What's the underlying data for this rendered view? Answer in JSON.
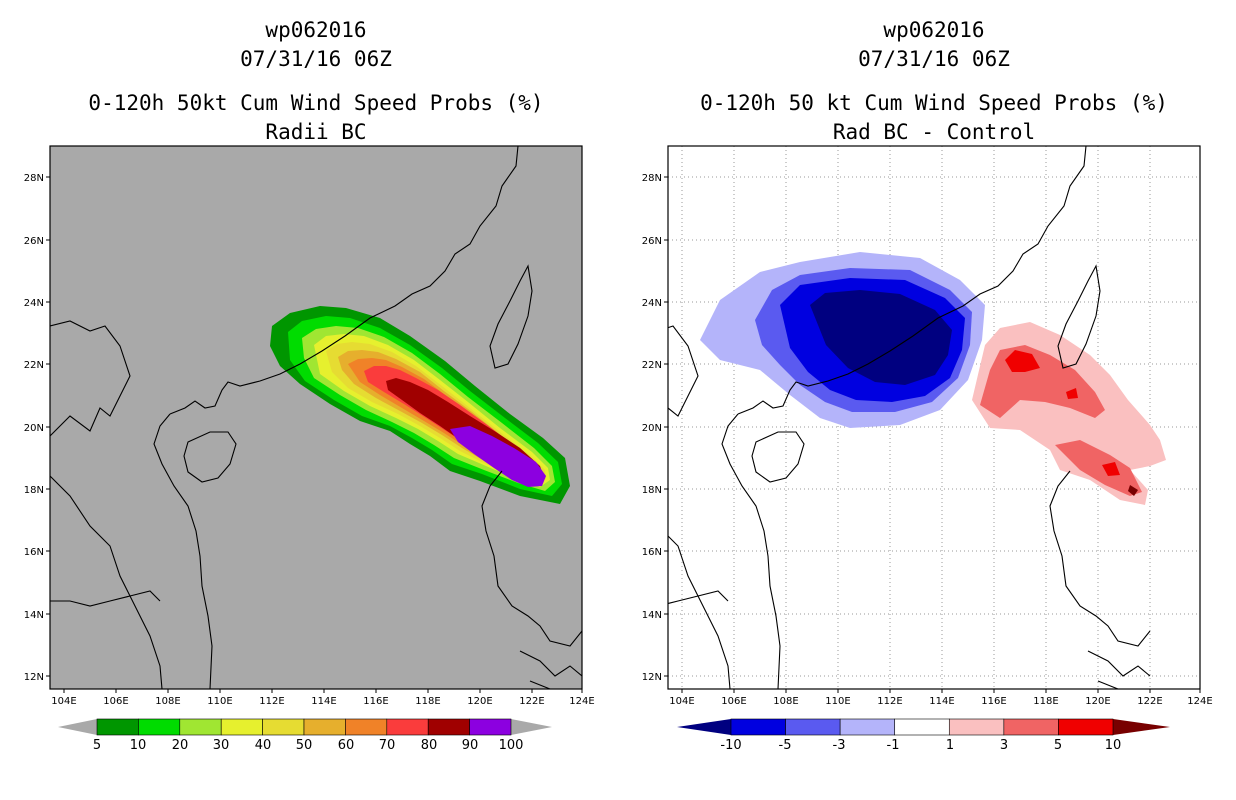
{
  "left_panel": {
    "title_line1": "wp062016",
    "title_line2": "07/31/16 06Z",
    "title_line3": "0-120h 50kt Cum Wind Speed Probs (%)",
    "title_line4": "Radii BC",
    "background_color": "#a9a9a9",
    "lat_labels": [
      "28N",
      "26N",
      "24N",
      "22N",
      "20N",
      "18N",
      "16N",
      "14N",
      "12N"
    ],
    "lon_labels": [
      "104E",
      "106E",
      "108E",
      "110E",
      "112E",
      "114E",
      "116E",
      "118E",
      "120E",
      "122E",
      "124E"
    ],
    "legend": {
      "colors": [
        "#009600",
        "#00dc00",
        "#a0e632",
        "#e6f02e",
        "#e6dc32",
        "#e6af2d",
        "#f08228",
        "#fa3c3c",
        "#a00000",
        "#8c00e0"
      ],
      "labels": [
        "5",
        "10",
        "20",
        "30",
        "40",
        "50",
        "60",
        "70",
        "80",
        "90",
        "100"
      ],
      "arrow_color": "#a9a9a9"
    }
  },
  "right_panel": {
    "title_line1": "wp062016",
    "title_line2": "07/31/16 06Z",
    "title_line3": "0-120h 50 kt Cum Wind Speed Probs (%)",
    "title_line4": "Rad BC - Control",
    "background_color": "#ffffff",
    "lat_labels": [
      "28N",
      "26N",
      "24N",
      "22N",
      "20N",
      "18N",
      "16N",
      "14N",
      "12N"
    ],
    "lon_labels": [
      "104E",
      "106E",
      "108E",
      "110E",
      "112E",
      "114E",
      "116E",
      "118E",
      "120E",
      "122E",
      "124E"
    ],
    "legend": {
      "colors": [
        "#0000e0",
        "#5a5af0",
        "#b4b4fa",
        "#ffffff",
        "#fac0c0",
        "#f06464",
        "#f00000"
      ],
      "labels": [
        "-10",
        "-5",
        "-3",
        "-1",
        "1",
        "3",
        "5",
        "10"
      ],
      "left_arrow_color": "#000080",
      "right_arrow_color": "#780000"
    }
  }
}
